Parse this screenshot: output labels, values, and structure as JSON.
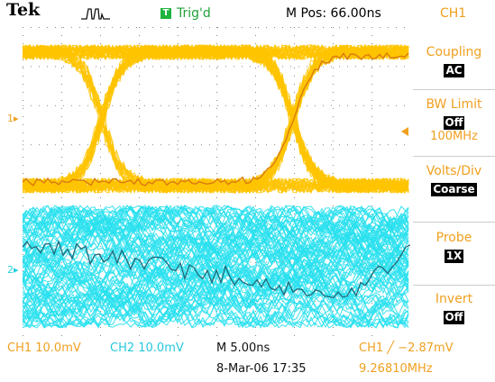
{
  "header": {
    "brand": "Tek",
    "trigger_status": "Trig'd",
    "trigger_badge": "T",
    "position": "M Pos: 66.00ns",
    "channel": "CH1"
  },
  "markers": {
    "ch1": "1",
    "ch2": "2"
  },
  "menu": {
    "coupling": {
      "label": "Coupling",
      "value": "AC"
    },
    "bw_limit": {
      "label": "BW Limit",
      "value": "Off",
      "sub": "100MHz"
    },
    "volts_div": {
      "label": "Volts/Div",
      "value": "Coarse"
    },
    "probe": {
      "label": "Probe",
      "value": "1X"
    },
    "invert": {
      "label": "Invert",
      "value": "Off"
    }
  },
  "readouts": {
    "ch1_scale": "CH1  10.0mV",
    "ch2_scale": "CH2  10.0mV",
    "timebase": "M 5.00ns",
    "date": "8-Mar-06 17:35",
    "trigger_level": "CH1 ╱ −2.87mV",
    "frequency": "9.26810MHz"
  },
  "colors": {
    "ch1": "#ffc400",
    "ch1_trace": "#d97a10",
    "ch2": "#29e0ee",
    "ch2_trace": "#1f6a7a",
    "accent": "#f0a020",
    "trig": "#1fb33f"
  }
}
